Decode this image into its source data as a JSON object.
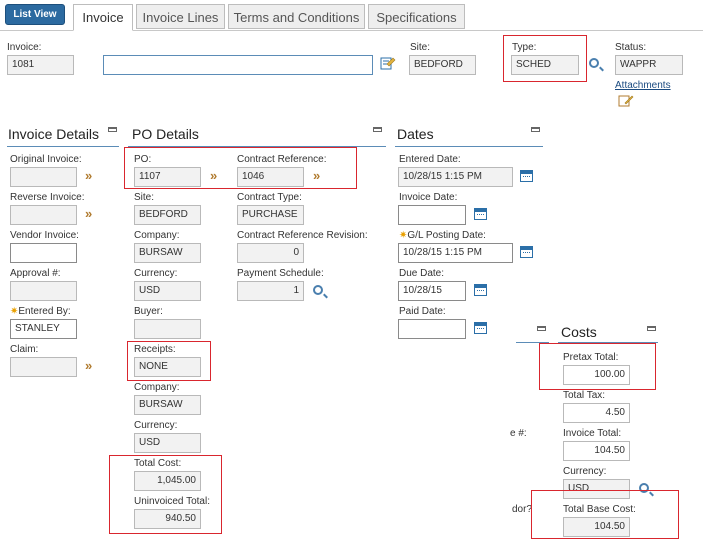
{
  "toolbar": {
    "list_view": "List View"
  },
  "tabs": [
    "Invoice",
    "Invoice Lines",
    "Terms and Conditions",
    "Specifications"
  ],
  "header": {
    "invoice_label": "Invoice:",
    "invoice_value": "1081",
    "description_value": "",
    "site_label": "Site:",
    "site_value": "BEDFORD",
    "type_label": "Type:",
    "type_value": "SCHED",
    "status_label": "Status:",
    "status_value": "WAPPR",
    "attachments_label": "Attachments"
  },
  "sections": {
    "invoice_details": "Invoice Details",
    "po_details": "PO Details",
    "dates": "Dates",
    "costs": "Costs"
  },
  "invoice_details": {
    "original_invoice_label": "Original Invoice:",
    "original_invoice_value": "",
    "reverse_invoice_label": "Reverse Invoice:",
    "reverse_invoice_value": "",
    "vendor_invoice_label": "Vendor Invoice:",
    "vendor_invoice_value": "",
    "approval_label": "Approval #:",
    "approval_value": "",
    "entered_by_label": "Entered By:",
    "entered_by_value": "STANLEY",
    "claim_label": "Claim:",
    "claim_value": ""
  },
  "po_details": {
    "po_label": "PO:",
    "po_value": "1107",
    "contract_ref_label": "Contract Reference:",
    "contract_ref_value": "1046",
    "site_label": "Site:",
    "site_value": "BEDFORD",
    "contract_type_label": "Contract Type:",
    "contract_type_value": "PURCHASE",
    "company_label": "Company:",
    "company_value": "BURSAW",
    "contract_rev_label": "Contract Reference Revision:",
    "contract_rev_value": "0",
    "currency_label": "Currency:",
    "currency_value": "USD",
    "payment_schedule_label": "Payment Schedule:",
    "payment_schedule_value": "1",
    "buyer_label": "Buyer:",
    "buyer_value": "",
    "receipts_label": "Receipts:",
    "receipts_value": "NONE",
    "company2_label": "Company:",
    "company2_value": "BURSAW",
    "currency2_label": "Currency:",
    "currency2_value": "USD",
    "total_cost_label": "Total Cost:",
    "total_cost_value": "1,045.00",
    "uninvoiced_label": "Uninvoiced Total:",
    "uninvoiced_value": "940.50"
  },
  "dates": {
    "entered_label": "Entered Date:",
    "entered_value": "10/28/15 1:15 PM",
    "invoice_date_label": "Invoice Date:",
    "invoice_date_value": "",
    "gl_label": "G/L Posting Date:",
    "gl_value": "10/28/15 1:15 PM",
    "due_label": "Due Date:",
    "due_value": "10/28/15",
    "paid_label": "Paid Date:",
    "paid_value": ""
  },
  "partial": {
    "frag1": "e #:",
    "frag2": "dor?"
  },
  "costs": {
    "pretax_label": "Pretax Total:",
    "pretax_value": "100.00",
    "tax_label": "Total Tax:",
    "tax_value": "4.50",
    "invoice_total_label": "Invoice Total:",
    "invoice_total_value": "104.50",
    "currency_label": "Currency:",
    "currency_value": "USD",
    "base_cost_label": "Total Base Cost:",
    "base_cost_value": "104.50"
  },
  "colors": {
    "accent": "#2c6aa0",
    "highlight_box": "#d9262e",
    "section_rule": "#5b8cb7",
    "required_star": "#e9a000"
  }
}
